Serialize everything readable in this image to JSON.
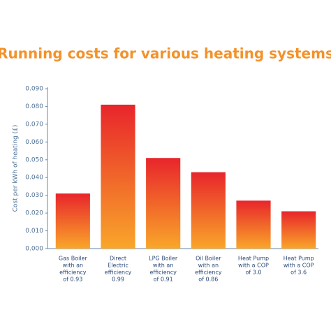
{
  "chart_data": {
    "type": "bar",
    "title": "Running costs for various heating systems",
    "y_label": "Cost per kWh of heating (£)",
    "categories": [
      [
        "Gas Boiler",
        "with an",
        "efficiency",
        "of 0.93"
      ],
      [
        "Direct",
        "Electric",
        "efficiency",
        "0.99"
      ],
      [
        "LPG Boiler",
        "with an",
        "efficiency",
        "of 0.91"
      ],
      [
        "Oil Boiler",
        "with an",
        "efficiency",
        "of 0.86"
      ],
      [
        "Heat Pump",
        "with a COP",
        "of 3.0"
      ],
      [
        "Heat Pump",
        "with a COP",
        "of 3.6"
      ]
    ],
    "values": [
      0.031,
      0.081,
      0.051,
      0.043,
      0.027,
      0.021
    ],
    "gradient": [
      "#e8252b",
      "#f9a62a"
    ],
    "ylim": [
      0,
      0.09
    ],
    "yticks": [
      {
        "value": 0,
        "label": "0.000"
      },
      {
        "value": 0.01,
        "label": "0.010"
      },
      {
        "value": 0.02,
        "label": "0.020"
      },
      {
        "value": 0.03,
        "label": "0.030"
      },
      {
        "value": 0.04,
        "label": "0.040"
      },
      {
        "value": 0.05,
        "label": "0.050"
      },
      {
        "value": 0.06,
        "label": "0.060"
      },
      {
        "value": 0.07,
        "label": "0.070"
      },
      {
        "value": 0.08,
        "label": "0.080"
      },
      {
        "value": 0.09,
        "label": "0.090"
      }
    ],
    "grid": false
  }
}
